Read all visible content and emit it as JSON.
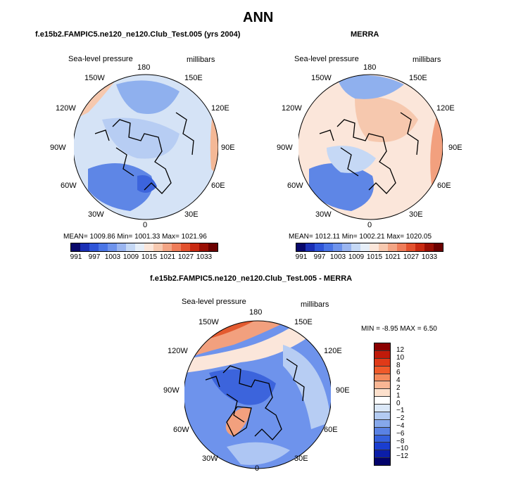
{
  "page": {
    "title": "ANN"
  },
  "panels": {
    "model": {
      "subtitle": "f.e15b2.FAMPIC5.ne120_ne120.Club_Test.005 (yrs 2004)",
      "variable": "Sea-level pressure",
      "units": "millibars",
      "stats": "MEAN= 1009.86    Min= 1001.33    Max= 1021.96"
    },
    "obs": {
      "subtitle": "MERRA",
      "variable": "Sea-level pressure",
      "units": "millibars",
      "stats": "MEAN= 1012.11    Min= 1002.21    Max= 1020.05"
    },
    "diff": {
      "subtitle": "f.e15b2.FAMPIC5.ne120_ne120.Club_Test.005 - MERRA",
      "variable": "Sea-level pressure",
      "units": "millibars",
      "stats": "MIN =    -8.95  MAX =      6.50"
    }
  },
  "longitude_labels": [
    "180",
    "150E",
    "120E",
    "90E",
    "60E",
    "30E",
    "0",
    "30W",
    "60W",
    "90W",
    "120W",
    "150W"
  ],
  "abs_colorbar": {
    "ticks": [
      "991",
      "997",
      "1003",
      "1009",
      "1015",
      "1021",
      "1027",
      "1033"
    ],
    "colors": [
      "#08086b",
      "#1a2fb5",
      "#2f55d8",
      "#4a75e6",
      "#6e93ec",
      "#9ab5f0",
      "#c5d8f5",
      "#e6eef8",
      "#fbe6da",
      "#f7c9b0",
      "#f3a585",
      "#ef7d5a",
      "#e3522f",
      "#c92a12",
      "#9a0f05",
      "#6b0000"
    ]
  },
  "diff_colorbar": {
    "ticks": [
      "12",
      "10",
      "8",
      "6",
      "4",
      "2",
      "1",
      "0",
      "−1",
      "−2",
      "−4",
      "−6",
      "−8",
      "−10",
      "−12"
    ],
    "colors": [
      "#8b0000",
      "#c01a0a",
      "#e03a18",
      "#f05a2a",
      "#f48a5c",
      "#f8b694",
      "#fde0cc",
      "#ffffff",
      "#dbe8f8",
      "#b3cbf2",
      "#86a8eb",
      "#5a82e4",
      "#3560dc",
      "#1a3ed0",
      "#0b1ea8",
      "#02026b"
    ]
  },
  "map_colors": {
    "ocean_deep_blue": "#3c64dc",
    "blue_mid": "#6e93ec",
    "blue_light": "#aec6f3",
    "neutral": "#f4f1ee",
    "peach": "#fbd8c5",
    "orange": "#f2a07e",
    "red": "#e35a2f"
  }
}
